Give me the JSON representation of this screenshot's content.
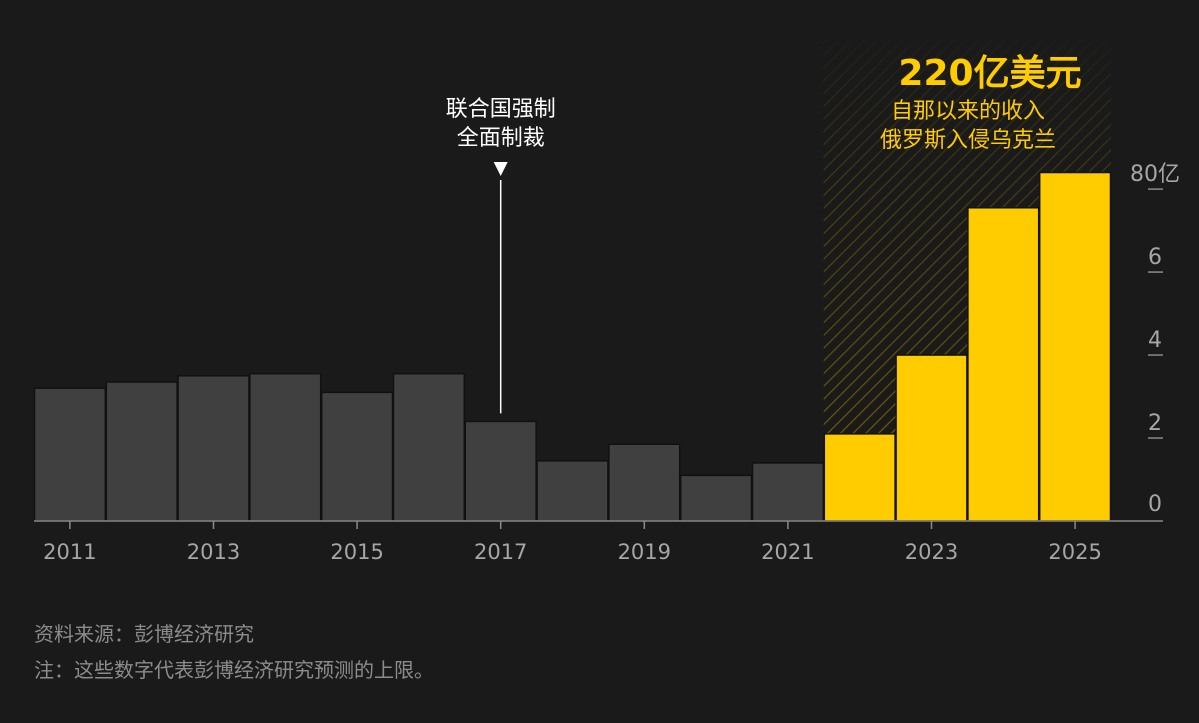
{
  "chart_data": {
    "type": "bar",
    "categories": [
      "2011",
      "2012",
      "2013",
      "2014",
      "2015",
      "2016",
      "2017",
      "2018",
      "2019",
      "2020",
      "2021",
      "2022",
      "2023",
      "2024",
      "2025"
    ],
    "values": [
      3.2,
      3.35,
      3.5,
      3.55,
      3.1,
      3.55,
      2.4,
      1.45,
      1.85,
      1.1,
      1.4,
      2.1,
      4.0,
      7.55,
      8.4
    ],
    "highlighted_categories": [
      "2022",
      "2023",
      "2024",
      "2025"
    ],
    "x_tick_labels": [
      "2011",
      "2013",
      "2015",
      "2017",
      "2019",
      "2021",
      "2023",
      "2025"
    ],
    "y_ticks": [
      {
        "value": 0,
        "label": "0"
      },
      {
        "value": 2,
        "label": "2"
      },
      {
        "value": 4,
        "label": "4"
      },
      {
        "value": 6,
        "label": "6"
      },
      {
        "value": 8,
        "label": "80亿"
      }
    ],
    "ylim": [
      0,
      8.4
    ],
    "y_axis_position": "right",
    "grid": false,
    "colors": {
      "background": "#1a1a1a",
      "bar_default": "#404040",
      "bar_highlight": "#ffcc00",
      "bar_stroke": "#111111",
      "axis_text": "#a6a6a6",
      "highlight_text": "#ffcc00",
      "annotation_text": "#ffffff",
      "footnote_text": "#8c8c8c"
    },
    "annotations": {
      "event": {
        "year": "2017",
        "lines": [
          "联合国强制",
          "全面制裁"
        ]
      },
      "highlight_region": {
        "from": "2022",
        "to": "2025",
        "big_number": "220亿美元",
        "lines": [
          "自那以来的收入",
          "俄罗斯入侵乌克兰"
        ]
      }
    }
  },
  "footer": {
    "source": "资料来源：彭博经济研究",
    "note": "注：这些数字代表彭博经济研究预测的上限。"
  }
}
